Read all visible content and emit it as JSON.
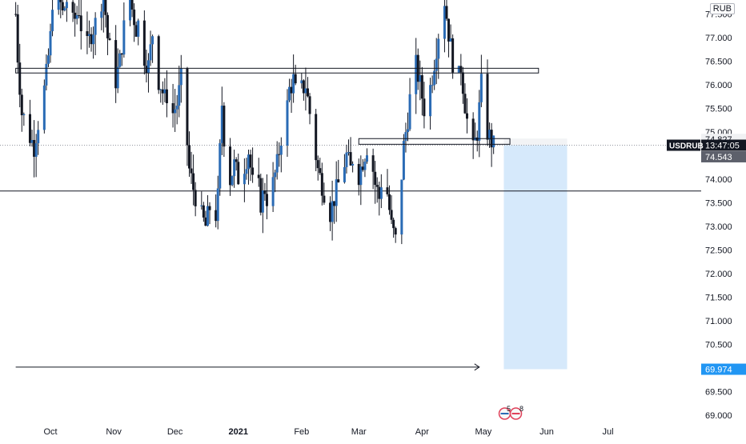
{
  "chart_data": {
    "type": "candlestick",
    "symbol": "USDRUB",
    "countdown": "13:47:05",
    "currency_badge": "RUB",
    "price_axis": {
      "ylim": [
        68.95,
        77.7
      ],
      "ticks": [
        "69.000",
        "69.500",
        "70.000",
        "70.500",
        "71.000",
        "71.500",
        "72.000",
        "72.500",
        "73.000",
        "73.500",
        "74.000",
        "74.500",
        "75.000",
        "75.500",
        "76.000",
        "76.500",
        "77.000",
        "77.500"
      ]
    },
    "time_axis": {
      "labels": [
        {
          "text": "Oct",
          "date": "2020-10-01",
          "bold": false
        },
        {
          "text": "Nov",
          "date": "2020-11-01",
          "bold": false
        },
        {
          "text": "Dec",
          "date": "2020-12-01",
          "bold": false
        },
        {
          "text": "2021",
          "date": "2021-01-01",
          "bold": true
        },
        {
          "text": "Feb",
          "date": "2021-02-01",
          "bold": false
        },
        {
          "text": "Mar",
          "date": "2021-03-01",
          "bold": false
        },
        {
          "text": "Apr",
          "date": "2021-04-01",
          "bold": false
        },
        {
          "text": "May",
          "date": "2021-05-01",
          "bold": false
        },
        {
          "text": "Jun",
          "date": "2021-06-01",
          "bold": false
        },
        {
          "text": "Jul",
          "date": "2021-07-01",
          "bold": false
        }
      ]
    },
    "price_labels": [
      {
        "value": 74.827,
        "text": "74.827",
        "style": "light"
      },
      {
        "value": 74.72,
        "text": "13:47:05",
        "style": "dark"
      },
      {
        "value": 74.543,
        "text": "74.543",
        "style": "gray"
      },
      {
        "value": 69.974,
        "text": "69.974",
        "style": "blue"
      }
    ],
    "symbol_tag": {
      "text": "USDRUB",
      "value": 74.72
    },
    "candle_path": [
      [
        77.5,
        "2020-09-14"
      ],
      [
        76.6,
        "2020-09-15"
      ],
      [
        75.4,
        "2020-09-17"
      ],
      [
        75.2,
        "2020-09-19"
      ],
      [
        74.9,
        "2020-09-21"
      ],
      [
        74.7,
        "2020-09-23"
      ],
      [
        75.2,
        "2020-09-25"
      ],
      [
        75.6,
        "2020-09-27"
      ],
      [
        76.2,
        "2020-09-29"
      ],
      [
        77.0,
        "2020-10-01"
      ],
      [
        77.8,
        "2020-10-02"
      ],
      [
        77.9,
        "2020-10-05"
      ],
      [
        77.5,
        "2020-10-07"
      ],
      [
        77.8,
        "2020-10-09"
      ],
      [
        77.2,
        "2020-10-11"
      ],
      [
        77.4,
        "2020-10-13"
      ],
      [
        77.6,
        "2020-10-15"
      ],
      [
        76.9,
        "2020-10-17"
      ],
      [
        76.8,
        "2020-10-19"
      ],
      [
        77.1,
        "2020-10-21"
      ],
      [
        77.3,
        "2020-10-23"
      ],
      [
        77.6,
        "2020-10-25"
      ],
      [
        78.0,
        "2020-10-27"
      ],
      [
        77.0,
        "2020-10-29"
      ],
      [
        76.5,
        "2020-10-31"
      ],
      [
        76.1,
        "2020-11-02"
      ],
      [
        76.5,
        "2020-11-04"
      ],
      [
        77.2,
        "2020-11-06"
      ],
      [
        78.0,
        "2020-11-08"
      ],
      [
        77.6,
        "2020-11-10"
      ],
      [
        77.2,
        "2020-11-12"
      ],
      [
        77.4,
        "2020-11-14"
      ],
      [
        76.6,
        "2020-11-16"
      ],
      [
        76.4,
        "2020-11-18"
      ],
      [
        77.1,
        "2020-11-20"
      ],
      [
        76.2,
        "2020-11-22"
      ],
      [
        76.0,
        "2020-11-24"
      ],
      [
        75.7,
        "2020-11-26"
      ],
      [
        75.9,
        "2020-11-28"
      ],
      [
        75.4,
        "2020-11-30"
      ],
      [
        75.6,
        "2020-12-02"
      ],
      [
        76.1,
        "2020-12-04"
      ],
      [
        75.3,
        "2020-12-06"
      ],
      [
        74.2,
        "2020-12-08"
      ],
      [
        73.8,
        "2020-12-10"
      ],
      [
        73.5,
        "2020-12-12"
      ],
      [
        73.2,
        "2020-12-14"
      ],
      [
        73.0,
        "2020-12-16"
      ],
      [
        73.4,
        "2020-12-18"
      ],
      [
        72.9,
        "2020-12-20"
      ],
      [
        73.6,
        "2020-12-22"
      ],
      [
        75.6,
        "2020-12-24"
      ],
      [
        74.2,
        "2020-12-26"
      ],
      [
        74.0,
        "2020-12-28"
      ],
      [
        74.3,
        "2020-12-30"
      ],
      [
        73.9,
        "2021-01-02"
      ],
      [
        74.3,
        "2021-01-04"
      ],
      [
        74.6,
        "2021-01-06"
      ],
      [
        73.9,
        "2021-01-08"
      ],
      [
        74.1,
        "2021-01-10"
      ],
      [
        73.5,
        "2021-01-12"
      ],
      [
        73.8,
        "2021-01-14"
      ],
      [
        73.4,
        "2021-01-16"
      ],
      [
        73.9,
        "2021-01-18"
      ],
      [
        74.3,
        "2021-01-20"
      ],
      [
        74.9,
        "2021-01-22"
      ],
      [
        75.2,
        "2021-01-24"
      ],
      [
        75.9,
        "2021-01-26"
      ],
      [
        76.1,
        "2021-01-28"
      ],
      [
        75.6,
        "2021-01-30"
      ],
      [
        75.9,
        "2021-02-01"
      ],
      [
        76.0,
        "2021-02-03"
      ],
      [
        75.4,
        "2021-02-05"
      ],
      [
        74.8,
        "2021-02-07"
      ],
      [
        74.2,
        "2021-02-09"
      ],
      [
        73.9,
        "2021-02-11"
      ],
      [
        73.6,
        "2021-02-13"
      ],
      [
        73.3,
        "2021-02-15"
      ],
      [
        73.6,
        "2021-02-17"
      ],
      [
        73.9,
        "2021-02-19"
      ],
      [
        74.2,
        "2021-02-21"
      ],
      [
        74.5,
        "2021-02-23"
      ],
      [
        74.2,
        "2021-02-25"
      ],
      [
        74.7,
        "2021-02-27"
      ],
      [
        74.1,
        "2021-03-01"
      ],
      [
        74.4,
        "2021-03-03"
      ],
      [
        74.7,
        "2021-03-05"
      ],
      [
        74.5,
        "2021-03-07"
      ],
      [
        73.9,
        "2021-03-09"
      ],
      [
        73.6,
        "2021-03-11"
      ],
      [
        74.3,
        "2021-03-13"
      ],
      [
        73.7,
        "2021-03-15"
      ],
      [
        73.0,
        "2021-03-17"
      ],
      [
        72.7,
        "2021-03-19"
      ],
      [
        73.5,
        "2021-03-21"
      ],
      [
        74.7,
        "2021-03-23"
      ],
      [
        75.3,
        "2021-03-25"
      ],
      [
        76.1,
        "2021-03-27"
      ],
      [
        76.4,
        "2021-03-29"
      ],
      [
        76.0,
        "2021-03-31"
      ],
      [
        75.5,
        "2021-04-02"
      ],
      [
        75.7,
        "2021-04-04"
      ],
      [
        76.2,
        "2021-04-06"
      ],
      [
        76.8,
        "2021-04-08"
      ],
      [
        77.4,
        "2021-04-10"
      ],
      [
        77.8,
        "2021-04-12"
      ],
      [
        77.1,
        "2021-04-14"
      ],
      [
        76.5,
        "2021-04-16"
      ],
      [
        75.9,
        "2021-04-18"
      ],
      [
        76.4,
        "2021-04-20"
      ],
      [
        75.6,
        "2021-04-22"
      ],
      [
        74.9,
        "2021-04-24"
      ],
      [
        74.6,
        "2021-04-26"
      ],
      [
        75.0,
        "2021-04-28"
      ],
      [
        76.0,
        "2021-04-30"
      ],
      [
        75.1,
        "2021-05-02"
      ],
      [
        74.9,
        "2021-05-04"
      ],
      [
        74.7,
        "2021-05-06"
      ]
    ],
    "annotations": {
      "horizontal_line_price": 73.75,
      "resistance_zone": {
        "top": 76.35,
        "bottom": 76.25,
        "start": "2020-09-14",
        "end": "2021-05-28"
      },
      "entry_zone": {
        "top": 74.86,
        "bottom": 74.74,
        "start": "2021-03-01",
        "end": "2021-05-14"
      },
      "short_position": {
        "entry": 74.72,
        "stop": 74.827,
        "target": 69.974,
        "start": "2021-05-11",
        "end": "2021-06-11"
      },
      "arrow": {
        "price": 70.02,
        "start": "2020-09-14",
        "end": "2021-04-29"
      },
      "event_marker": {
        "date": "2021-05-13",
        "label_a": "5",
        "label_b": "8"
      }
    }
  }
}
